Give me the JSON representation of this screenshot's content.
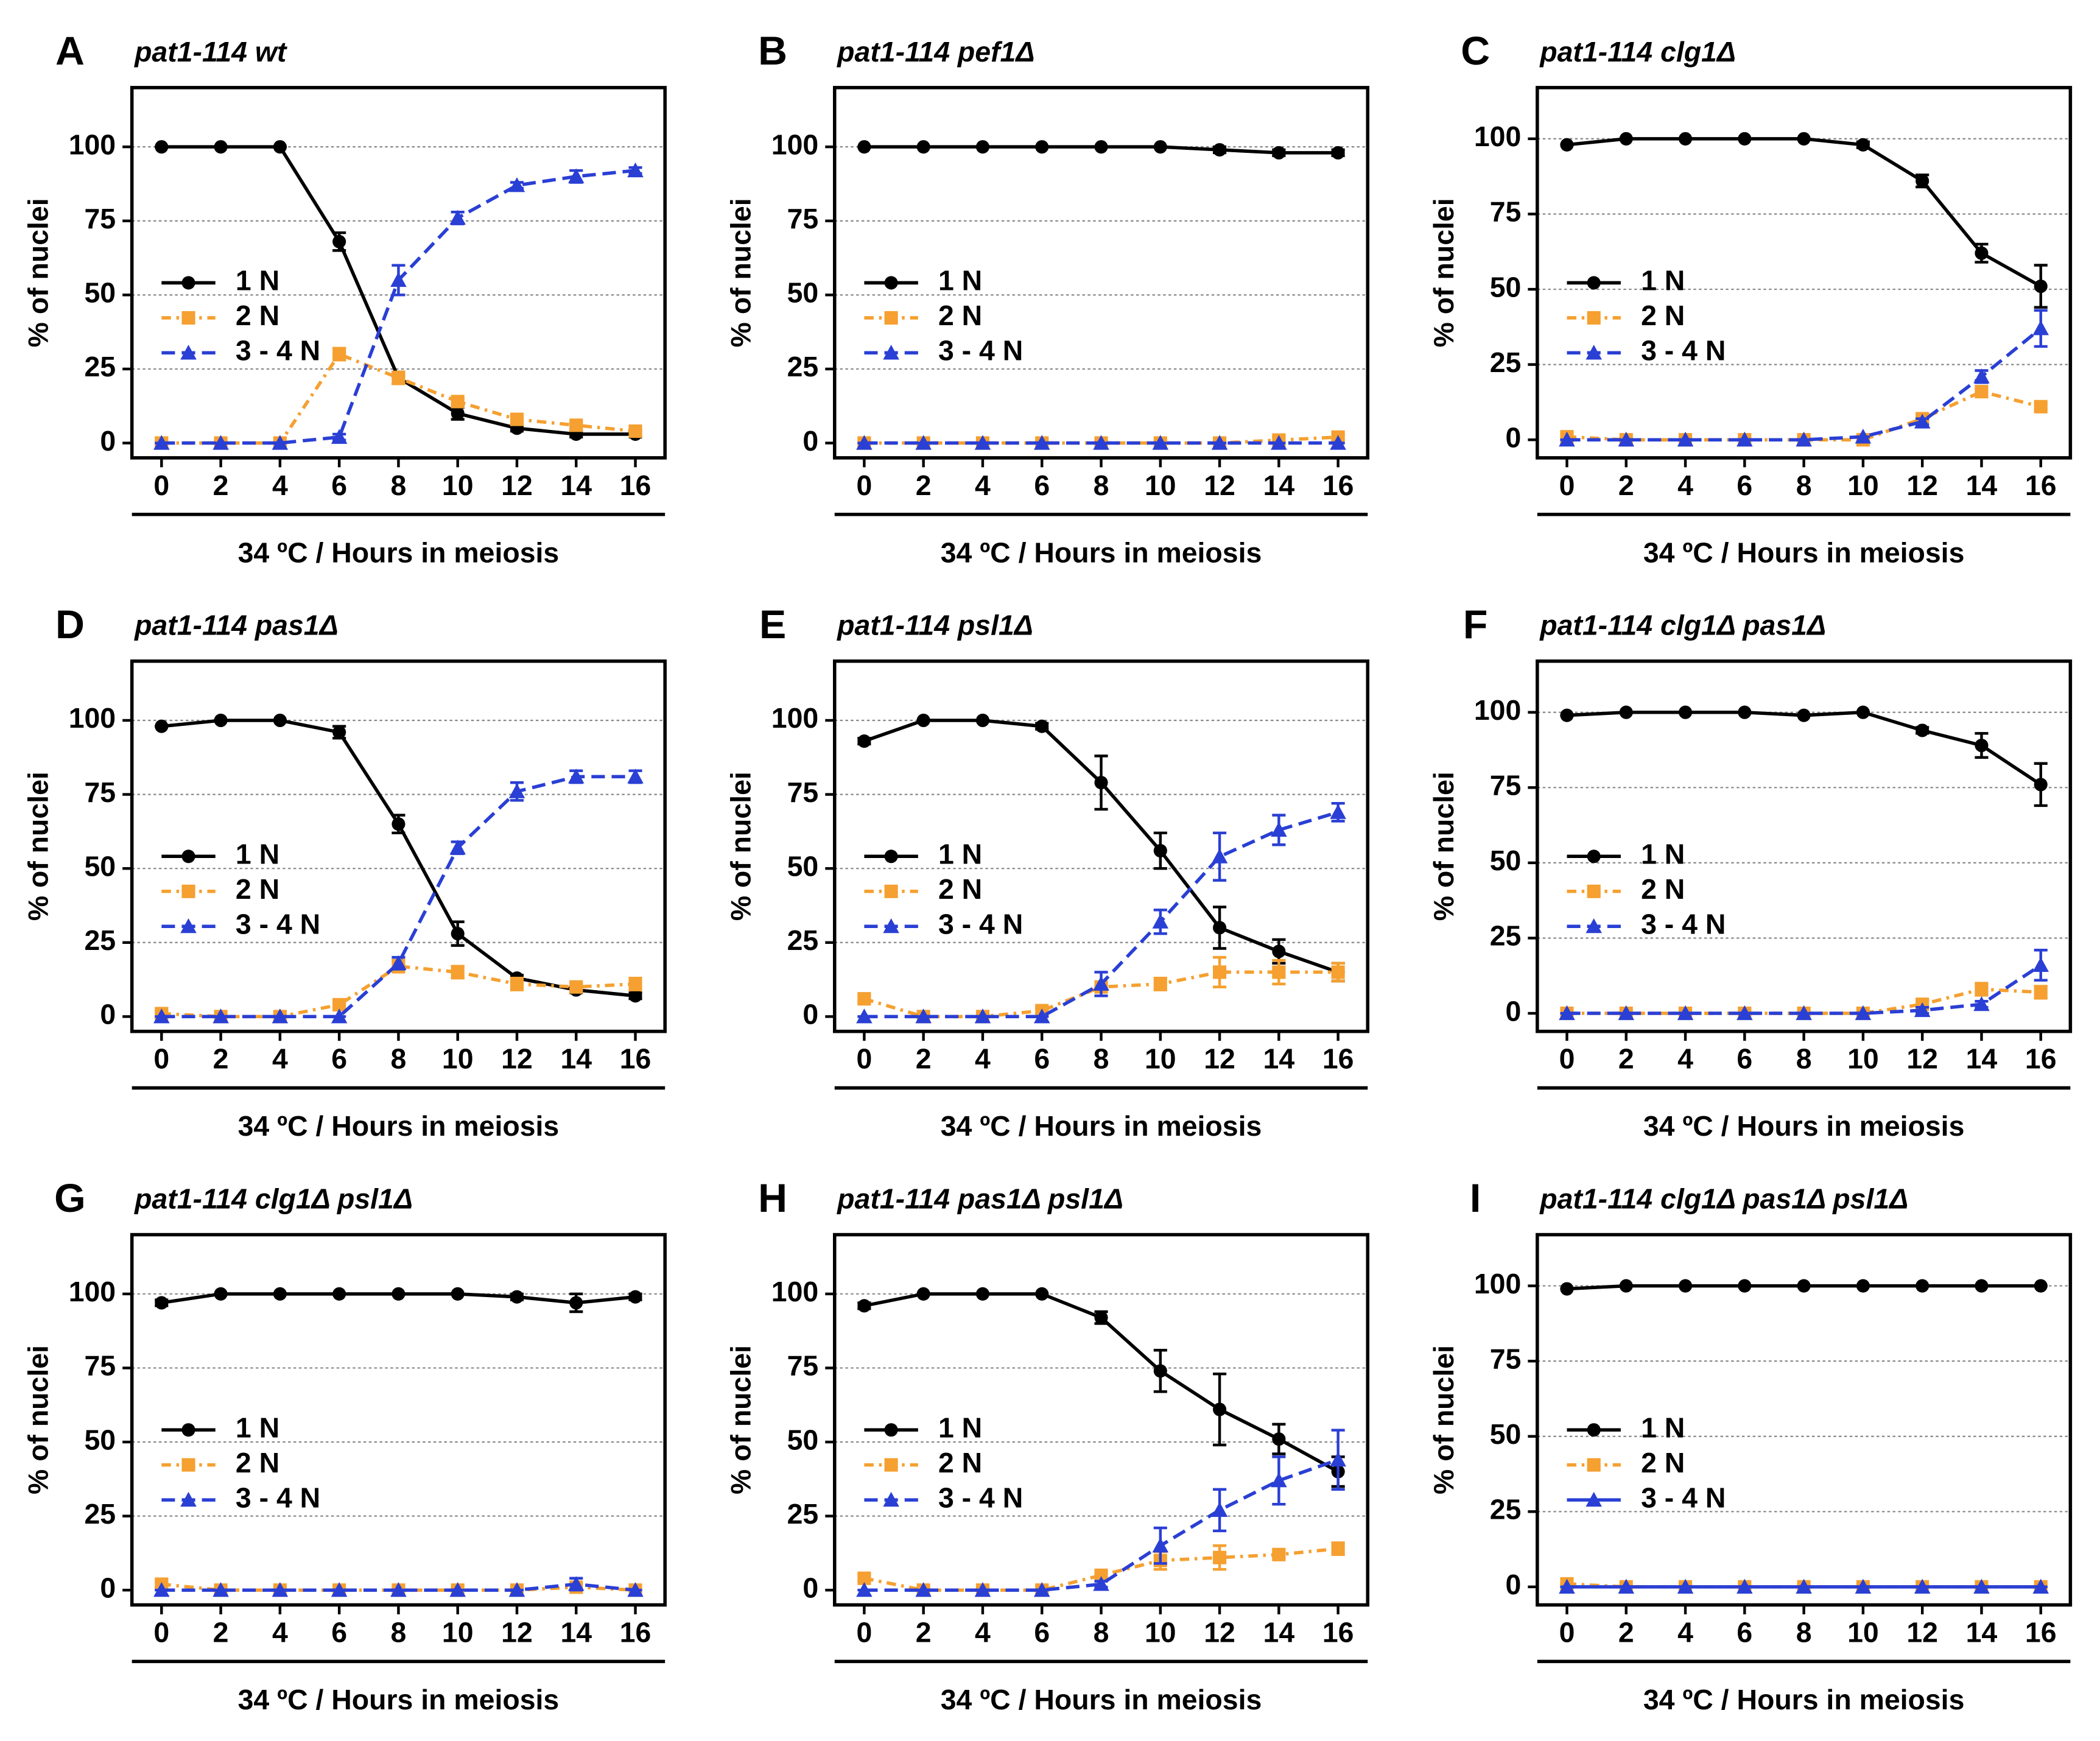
{
  "chart_data": [
    {
      "type": "line",
      "panel": "A",
      "title": "pat1-114 wt",
      "x": [
        0,
        2,
        4,
        6,
        8,
        10,
        12,
        14,
        16
      ],
      "xlim": [
        -1,
        17
      ],
      "xticks": [
        0,
        2,
        4,
        6,
        8,
        10,
        12,
        14,
        16
      ],
      "ylim": [
        -5,
        120
      ],
      "yticks": [
        0,
        25,
        50,
        75,
        100
      ],
      "xlabel": "34 ºC / Hours in meiosis",
      "ylabel": "% of nuclei",
      "legend": "middle-left",
      "series": [
        {
          "name": "1 N",
          "color": "#000000",
          "line_style": "solid",
          "marker": "circle",
          "values": [
            100,
            100,
            100,
            68,
            22,
            10,
            5,
            3,
            3
          ],
          "errors": [
            0,
            0,
            0,
            3,
            2,
            2,
            1,
            1,
            1
          ]
        },
        {
          "name": "2 N",
          "color": "#f5a030",
          "line_style": "dashdot",
          "marker": "square",
          "values": [
            0,
            0,
            0,
            30,
            22,
            14,
            8,
            6,
            4
          ],
          "errors": [
            0,
            0,
            0,
            2,
            2,
            1,
            1,
            1,
            1
          ]
        },
        {
          "name": "3 - 4 N",
          "color": "#2a3fd4",
          "line_style": "dashed",
          "marker": "triangle",
          "values": [
            0,
            0,
            0,
            2,
            55,
            76,
            87,
            90,
            92
          ],
          "errors": [
            0,
            0,
            0,
            1,
            5,
            2,
            1,
            2,
            1
          ]
        }
      ]
    },
    {
      "type": "line",
      "panel": "B",
      "title": "pat1-114 pef1Δ",
      "x": [
        0,
        2,
        4,
        6,
        8,
        10,
        12,
        14,
        16
      ],
      "xlim": [
        -1,
        17
      ],
      "xticks": [
        0,
        2,
        4,
        6,
        8,
        10,
        12,
        14,
        16
      ],
      "ylim": [
        -5,
        120
      ],
      "yticks": [
        0,
        25,
        50,
        75,
        100
      ],
      "xlabel": "34 ºC / Hours in meiosis",
      "ylabel": "% of nuclei",
      "legend": "middle-left",
      "series": [
        {
          "name": "1 N",
          "color": "#000000",
          "line_style": "solid",
          "marker": "circle",
          "values": [
            100,
            100,
            100,
            100,
            100,
            100,
            99,
            98,
            98
          ],
          "errors": [
            0,
            0,
            0,
            0,
            0,
            0,
            1,
            1,
            1
          ]
        },
        {
          "name": "2 N",
          "color": "#f5a030",
          "line_style": "dashdot",
          "marker": "square",
          "values": [
            0,
            0,
            0,
            0,
            0,
            0,
            0,
            1,
            2
          ],
          "errors": [
            0,
            0,
            0,
            0,
            0,
            0,
            0,
            1,
            1
          ]
        },
        {
          "name": "3 - 4 N",
          "color": "#2a3fd4",
          "line_style": "dashed",
          "marker": "triangle",
          "values": [
            0,
            0,
            0,
            0,
            0,
            0,
            0,
            0,
            0
          ],
          "errors": [
            0,
            0,
            0,
            0,
            0,
            0,
            0,
            0,
            0
          ]
        }
      ]
    },
    {
      "type": "line",
      "panel": "C",
      "title": "pat1-114 clg1Δ",
      "x": [
        0,
        2,
        4,
        6,
        8,
        10,
        12,
        14,
        16
      ],
      "xlim": [
        -1,
        17
      ],
      "xticks": [
        0,
        2,
        4,
        6,
        8,
        10,
        12,
        14,
        16
      ],
      "ylim": [
        -6,
        117
      ],
      "yticks": [
        0,
        25,
        50,
        75,
        100
      ],
      "xlabel": "34 ºC / Hours in meiosis",
      "ylabel": "% of nuclei",
      "legend": "middle-left",
      "series": [
        {
          "name": "1 N",
          "color": "#000000",
          "line_style": "solid",
          "marker": "circle",
          "values": [
            98,
            100,
            100,
            100,
            100,
            98,
            86,
            62,
            51
          ],
          "errors": [
            0,
            0,
            0,
            0,
            0,
            1,
            2,
            3,
            7
          ]
        },
        {
          "name": "2 N",
          "color": "#f5a030",
          "line_style": "dashdot",
          "marker": "square",
          "values": [
            1,
            0,
            0,
            0,
            0,
            0,
            7,
            16,
            11
          ],
          "errors": [
            1,
            0,
            0,
            0,
            0,
            0,
            1,
            1,
            1
          ]
        },
        {
          "name": "3 - 4 N",
          "color": "#2a3fd4",
          "line_style": "dashed",
          "marker": "triangle",
          "values": [
            0,
            0,
            0,
            0,
            0,
            1,
            6,
            21,
            37
          ],
          "errors": [
            0,
            0,
            0,
            0,
            0,
            0,
            1,
            2,
            6
          ]
        }
      ]
    },
    {
      "type": "line",
      "panel": "D",
      "title": "pat1-114 pas1Δ",
      "x": [
        0,
        2,
        4,
        6,
        8,
        10,
        12,
        14,
        16
      ],
      "xlim": [
        -1,
        17
      ],
      "xticks": [
        0,
        2,
        4,
        6,
        8,
        10,
        12,
        14,
        16
      ],
      "ylim": [
        -5,
        120
      ],
      "yticks": [
        0,
        25,
        50,
        75,
        100
      ],
      "xlabel": "34 ºC / Hours in meiosis",
      "ylabel": "% of nuclei",
      "legend": "middle-left",
      "series": [
        {
          "name": "1 N",
          "color": "#000000",
          "line_style": "solid",
          "marker": "circle",
          "values": [
            98,
            100,
            100,
            96,
            65,
            28,
            13,
            9,
            7
          ],
          "errors": [
            0,
            0,
            0,
            2,
            3,
            4,
            1,
            1,
            1
          ]
        },
        {
          "name": "2 N",
          "color": "#f5a030",
          "line_style": "dashdot",
          "marker": "square",
          "values": [
            1,
            0,
            0,
            4,
            17,
            15,
            11,
            10,
            11
          ],
          "errors": [
            1,
            0,
            0,
            1,
            2,
            2,
            2,
            1,
            2
          ]
        },
        {
          "name": "3 - 4 N",
          "color": "#2a3fd4",
          "line_style": "dashed",
          "marker": "triangle",
          "values": [
            0,
            0,
            0,
            0,
            18,
            57,
            76,
            81,
            81
          ],
          "errors": [
            0,
            0,
            0,
            0,
            2,
            2,
            3,
            2,
            2
          ]
        }
      ]
    },
    {
      "type": "line",
      "panel": "E",
      "title": "pat1-114 psl1Δ",
      "x": [
        0,
        2,
        4,
        6,
        8,
        10,
        12,
        14,
        16
      ],
      "xlim": [
        -1,
        17
      ],
      "xticks": [
        0,
        2,
        4,
        6,
        8,
        10,
        12,
        14,
        16
      ],
      "ylim": [
        -5,
        120
      ],
      "yticks": [
        0,
        25,
        50,
        75,
        100
      ],
      "xlabel": "34 ºC / Hours in meiosis",
      "ylabel": "% of nuclei",
      "legend": "middle-left",
      "series": [
        {
          "name": "1 N",
          "color": "#000000",
          "line_style": "solid",
          "marker": "circle",
          "values": [
            93,
            100,
            100,
            98,
            79,
            56,
            30,
            22,
            15
          ],
          "errors": [
            1,
            0,
            0,
            1,
            9,
            6,
            7,
            4,
            3
          ]
        },
        {
          "name": "2 N",
          "color": "#f5a030",
          "line_style": "dashdot",
          "marker": "square",
          "values": [
            6,
            0,
            0,
            2,
            10,
            11,
            15,
            15,
            15
          ],
          "errors": [
            1,
            0,
            0,
            1,
            1,
            2,
            5,
            4,
            3
          ]
        },
        {
          "name": "3 - 4 N",
          "color": "#2a3fd4",
          "line_style": "dashed",
          "marker": "triangle",
          "values": [
            0,
            0,
            0,
            0,
            11,
            32,
            54,
            63,
            69
          ],
          "errors": [
            0,
            0,
            0,
            0,
            4,
            4,
            8,
            5,
            3
          ]
        }
      ]
    },
    {
      "type": "line",
      "panel": "F",
      "title": "pat1-114 clg1Δ pas1Δ",
      "x": [
        0,
        2,
        4,
        6,
        8,
        10,
        12,
        14,
        16
      ],
      "xlim": [
        -1,
        17
      ],
      "xticks": [
        0,
        2,
        4,
        6,
        8,
        10,
        12,
        14,
        16
      ],
      "ylim": [
        -6,
        117
      ],
      "yticks": [
        0,
        25,
        50,
        75,
        100
      ],
      "xlabel": "34 ºC / Hours in meiosis",
      "ylabel": "% of nuclei",
      "legend": "middle-left",
      "series": [
        {
          "name": "1 N",
          "color": "#000000",
          "line_style": "solid",
          "marker": "circle",
          "values": [
            99,
            100,
            100,
            100,
            99,
            100,
            94,
            89,
            76
          ],
          "errors": [
            0,
            0,
            0,
            0,
            0,
            0,
            1,
            4,
            7
          ]
        },
        {
          "name": "2 N",
          "color": "#f5a030",
          "line_style": "dashdot",
          "marker": "square",
          "values": [
            0,
            0,
            0,
            0,
            0,
            0,
            3,
            8,
            7
          ],
          "errors": [
            0,
            0,
            0,
            0,
            0,
            0,
            1,
            2,
            2
          ]
        },
        {
          "name": "3 - 4 N",
          "color": "#2a3fd4",
          "line_style": "dashed",
          "marker": "triangle",
          "values": [
            0,
            0,
            0,
            0,
            0,
            0,
            1,
            3,
            16
          ],
          "errors": [
            0,
            0,
            0,
            0,
            0,
            0,
            1,
            1,
            5
          ]
        }
      ]
    },
    {
      "type": "line",
      "panel": "G",
      "title": "pat1-114 clg1Δ psl1Δ",
      "x": [
        0,
        2,
        4,
        6,
        8,
        10,
        12,
        14,
        16
      ],
      "xlim": [
        -1,
        17
      ],
      "xticks": [
        0,
        2,
        4,
        6,
        8,
        10,
        12,
        14,
        16
      ],
      "ylim": [
        -5,
        120
      ],
      "yticks": [
        0,
        25,
        50,
        75,
        100
      ],
      "xlabel": "34 ºC / Hours in meiosis",
      "ylabel": "% of nuclei",
      "legend": "middle-left",
      "series": [
        {
          "name": "1 N",
          "color": "#000000",
          "line_style": "solid",
          "marker": "circle",
          "values": [
            97,
            100,
            100,
            100,
            100,
            100,
            99,
            97,
            99
          ],
          "errors": [
            1,
            0,
            0,
            0,
            0,
            0,
            1,
            3,
            1
          ]
        },
        {
          "name": "2 N",
          "color": "#f5a030",
          "line_style": "dashdot",
          "marker": "square",
          "values": [
            2,
            0,
            0,
            0,
            0,
            0,
            0,
            1,
            0
          ],
          "errors": [
            1,
            0,
            0,
            0,
            0,
            0,
            0,
            1,
            0
          ]
        },
        {
          "name": "3 - 4 N",
          "color": "#2a3fd4",
          "line_style": "dashed",
          "marker": "triangle",
          "values": [
            0,
            0,
            0,
            0,
            0,
            0,
            0,
            2,
            0
          ],
          "errors": [
            0,
            0,
            0,
            0,
            0,
            0,
            0,
            2,
            0
          ]
        }
      ]
    },
    {
      "type": "line",
      "panel": "H",
      "title": "pat1-114 pas1Δ psl1Δ",
      "x": [
        0,
        2,
        4,
        6,
        8,
        10,
        12,
        14,
        16
      ],
      "xlim": [
        -1,
        17
      ],
      "xticks": [
        0,
        2,
        4,
        6,
        8,
        10,
        12,
        14,
        16
      ],
      "ylim": [
        -5,
        120
      ],
      "yticks": [
        0,
        25,
        50,
        75,
        100
      ],
      "xlabel": "34 ºC / Hours in meiosis",
      "ylabel": "% of nuclei",
      "legend": "middle-left",
      "series": [
        {
          "name": "1 N",
          "color": "#000000",
          "line_style": "solid",
          "marker": "circle",
          "values": [
            96,
            100,
            100,
            100,
            92,
            74,
            61,
            51,
            40
          ],
          "errors": [
            1,
            0,
            0,
            0,
            2,
            7,
            12,
            5,
            5
          ]
        },
        {
          "name": "2 N",
          "color": "#f5a030",
          "line_style": "dashdot",
          "marker": "square",
          "values": [
            4,
            0,
            0,
            0,
            5,
            10,
            11,
            12,
            14
          ],
          "errors": [
            1,
            0,
            0,
            0,
            1,
            3,
            4,
            1,
            2
          ]
        },
        {
          "name": "3 - 4 N",
          "color": "#2a3fd4",
          "line_style": "dashed",
          "marker": "triangle",
          "values": [
            0,
            0,
            0,
            0,
            2,
            15,
            27,
            37,
            44
          ],
          "errors": [
            0,
            0,
            0,
            0,
            1,
            6,
            7,
            8,
            10
          ]
        }
      ]
    },
    {
      "type": "line",
      "panel": "I",
      "title": "pat1-114 clg1Δ pas1Δ psl1Δ",
      "x": [
        0,
        2,
        4,
        6,
        8,
        10,
        12,
        14,
        16
      ],
      "xlim": [
        -1,
        17
      ],
      "xticks": [
        0,
        2,
        4,
        6,
        8,
        10,
        12,
        14,
        16
      ],
      "ylim": [
        -6,
        117
      ],
      "yticks": [
        0,
        25,
        50,
        75,
        100
      ],
      "xlabel": "34 ºC / Hours in meiosis",
      "ylabel": "% of nuclei",
      "legend": "middle-left",
      "series": [
        {
          "name": "1 N",
          "color": "#000000",
          "line_style": "solid",
          "marker": "circle",
          "values": [
            99,
            100,
            100,
            100,
            100,
            100,
            100,
            100,
            100
          ],
          "errors": [
            0,
            0,
            0,
            0,
            0,
            0,
            0,
            0,
            0
          ]
        },
        {
          "name": "2 N",
          "color": "#f5a030",
          "line_style": "dashdot",
          "marker": "square",
          "values": [
            1,
            0,
            0,
            0,
            0,
            0,
            0,
            0,
            0
          ],
          "errors": [
            0,
            0,
            0,
            0,
            0,
            0,
            0,
            0,
            0
          ]
        },
        {
          "name": "3 - 4 N",
          "color": "#2a3fd4",
          "line_style": "solid",
          "marker": "triangle",
          "values": [
            0,
            0,
            0,
            0,
            0,
            0,
            0,
            0,
            0
          ],
          "errors": [
            0,
            0,
            0,
            0,
            0,
            0,
            0,
            0,
            0
          ]
        }
      ]
    }
  ]
}
